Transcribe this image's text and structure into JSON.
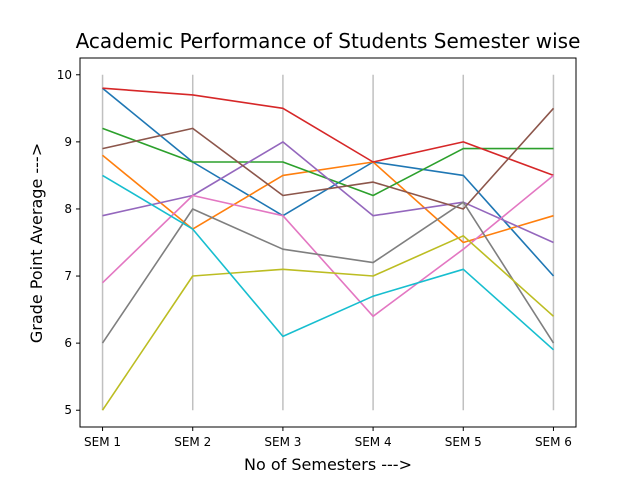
{
  "chart_data": {
    "type": "line",
    "title": "Academic Performance of Students Semester wise",
    "xlabel": "No of Semesters --->",
    "ylabel": "Grade Point Average --->",
    "categories": [
      "SEM 1",
      "SEM 2",
      "SEM 3",
      "SEM 4",
      "SEM 5",
      "SEM 6"
    ],
    "ylim": [
      4.75,
      10.25
    ],
    "yticks": [
      "5",
      "6",
      "7",
      "8",
      "9",
      "10"
    ],
    "grid": "vertical",
    "grid_color": "#c0c0c0",
    "series": [
      {
        "color": "#1f77b4",
        "values": [
          9.8,
          8.7,
          7.9,
          8.7,
          8.5,
          7.0
        ]
      },
      {
        "color": "#ff7f0e",
        "values": [
          8.8,
          7.7,
          8.5,
          8.7,
          7.5,
          7.9
        ]
      },
      {
        "color": "#2ca02c",
        "values": [
          9.2,
          8.7,
          8.7,
          8.2,
          8.9,
          8.9
        ]
      },
      {
        "color": "#d62728",
        "values": [
          9.8,
          9.7,
          9.5,
          8.7,
          9.0,
          8.5
        ]
      },
      {
        "color": "#9467bd",
        "values": [
          7.9,
          8.2,
          9.0,
          7.9,
          8.1,
          7.5
        ]
      },
      {
        "color": "#8c564b",
        "values": [
          8.9,
          9.2,
          8.2,
          8.4,
          8.0,
          9.5
        ]
      },
      {
        "color": "#e377c2",
        "values": [
          6.9,
          8.2,
          7.9,
          6.4,
          7.4,
          8.5
        ]
      },
      {
        "color": "#7f7f7f",
        "values": [
          6.0,
          8.0,
          7.4,
          7.2,
          8.1,
          6.0
        ]
      },
      {
        "color": "#bcbd22",
        "values": [
          5.0,
          7.0,
          7.1,
          7.0,
          7.6,
          6.4
        ]
      },
      {
        "color": "#17becf",
        "values": [
          8.5,
          7.7,
          6.1,
          6.7,
          7.1,
          5.9
        ]
      }
    ]
  }
}
